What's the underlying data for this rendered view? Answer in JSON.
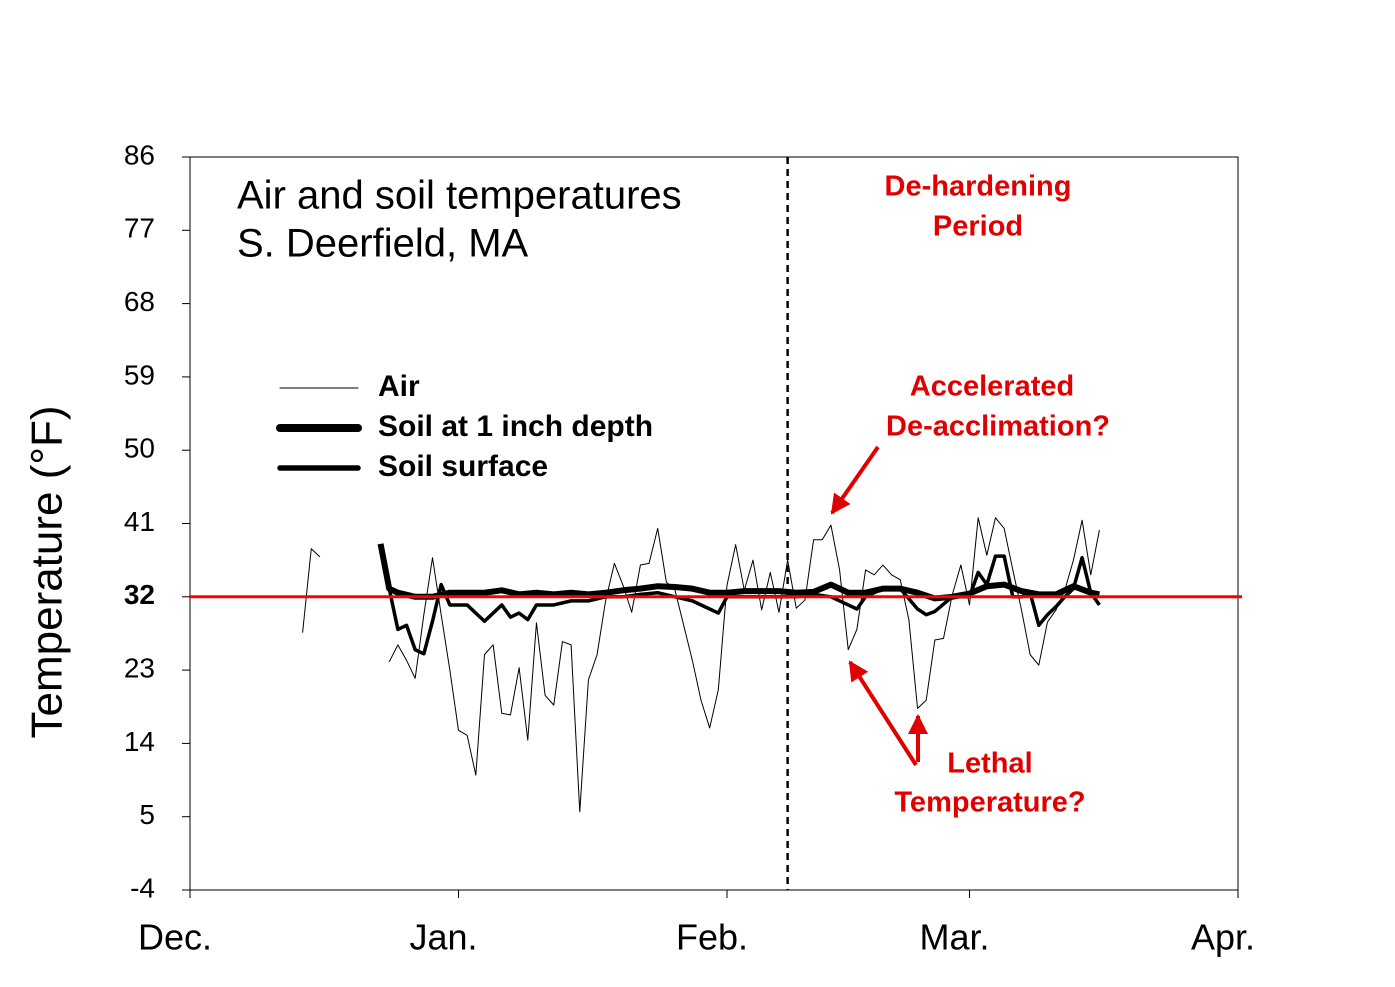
{
  "chart_data": {
    "type": "line",
    "title": [
      "Air and soil temperatures",
      "S. Deerfield, MA"
    ],
    "y_label": "Temperature (°F)",
    "xlim": [
      0,
      121
    ],
    "xticks": [
      {
        "value": 0,
        "label": "Dec."
      },
      {
        "value": 31,
        "label": "Jan."
      },
      {
        "value": 62,
        "label": "Feb."
      },
      {
        "value": 90,
        "label": "Mar."
      },
      {
        "value": 121,
        "label": "Apr."
      }
    ],
    "ylim": [
      -4,
      86
    ],
    "yticks": [
      -4,
      5,
      14,
      23,
      32,
      41,
      50,
      59,
      68,
      77,
      86
    ],
    "threshold": 32,
    "threshold_color": "#ff0000",
    "divider_x": 69,
    "annotations": {
      "period": [
        "De-hardening",
        "Period"
      ],
      "accelerated": [
        "Accelerated",
        "De-acclimation?"
      ],
      "lethal": [
        "Lethal",
        "Temperature?"
      ]
    },
    "series": [
      {
        "name": "Air",
        "color": "#000000",
        "width": 1,
        "x": [
          13,
          14,
          15,
          19,
          23,
          24,
          25,
          26,
          27,
          28,
          29,
          30,
          31,
          32,
          33,
          34,
          35,
          36,
          37,
          38,
          39,
          40,
          41,
          42,
          43,
          44,
          45,
          46,
          47,
          48,
          49,
          50,
          51,
          52,
          53,
          54,
          55,
          56,
          57,
          58,
          59,
          60,
          61,
          62,
          63,
          64,
          65,
          66,
          67,
          68,
          69,
          70,
          71,
          72,
          73,
          74,
          75,
          76,
          77,
          78,
          79,
          80,
          81,
          82,
          83,
          84,
          85,
          86,
          87,
          88,
          89,
          90,
          91,
          92,
          93,
          94,
          95,
          96,
          97,
          98,
          99,
          100,
          101,
          102,
          103,
          104,
          105
        ],
        "values": [
          27.6,
          37.9,
          36.9,
          null,
          24,
          26.1,
          24.2,
          22,
          29.8,
          36.8,
          29.8,
          23,
          15.6,
          15,
          10.1,
          24.9,
          26.1,
          17.7,
          17.5,
          23.3,
          14.4,
          28.8,
          19.9,
          18.7,
          26.5,
          26.1,
          5.6,
          21.8,
          24.9,
          31.6,
          36.1,
          33.4,
          30.1,
          35.9,
          36.1,
          40.4,
          33.8,
          32.8,
          28.5,
          24.2,
          19.3,
          15.9,
          20.6,
          33.4,
          38.4,
          32.8,
          36.5,
          30.4,
          35,
          30.1,
          36.5,
          30.6,
          31.6,
          39,
          39,
          40.8,
          35.3,
          25.5,
          28,
          35.3,
          34.7,
          35.9,
          34.7,
          34.1,
          29.2,
          18.3,
          19.3,
          26.7,
          26.9,
          32.2,
          35.9,
          31,
          41.7,
          37.1,
          41.7,
          40.4,
          35.3,
          30.4,
          24.9,
          23.6,
          28.9,
          30.4,
          32.8,
          36.5,
          41.4,
          34.7,
          40.2
        ]
      },
      {
        "name": "Soil at 1 inch depth",
        "color": "#000000",
        "width": 6,
        "x": [
          22,
          23,
          24,
          26,
          28,
          30,
          32,
          34,
          36,
          38,
          40,
          42,
          44,
          46,
          48,
          50,
          52,
          54,
          56,
          58,
          60,
          62,
          64,
          66,
          68,
          70,
          72,
          74,
          76,
          78,
          80,
          82,
          84,
          86,
          88,
          90,
          92,
          94,
          96,
          98,
          100,
          102,
          104,
          105
        ],
        "values": [
          38.5,
          33,
          32.5,
          32,
          32,
          32.5,
          32.5,
          32.5,
          32.8,
          32.3,
          32.5,
          32.3,
          32.5,
          32.3,
          32.5,
          32.8,
          33,
          33.3,
          33.2,
          33,
          32.5,
          32.5,
          32.7,
          32.7,
          32.7,
          32.5,
          32.6,
          33.5,
          32.5,
          32.5,
          33,
          33,
          32.5,
          31.8,
          32,
          32.4,
          33.3,
          33.5,
          32.7,
          32.3,
          32.3,
          33.3,
          32.5,
          32.3
        ]
      },
      {
        "name": "Soil surface",
        "color": "#000000",
        "width": 3.5,
        "x": [
          22,
          23,
          24,
          25,
          26,
          27,
          28,
          29,
          30,
          32,
          33,
          34,
          36,
          37,
          38,
          39,
          40,
          42,
          44,
          46,
          48,
          50,
          52,
          54,
          56,
          58,
          60,
          61,
          62,
          64,
          66,
          68,
          70,
          72,
          74,
          76,
          77,
          78,
          80,
          82,
          84,
          85,
          86,
          88,
          90,
          91,
          92,
          93,
          94,
          95,
          96,
          97,
          98,
          99,
          100,
          101,
          102,
          103,
          104,
          105
        ],
        "values": [
          38,
          33,
          28,
          28.5,
          25.5,
          25,
          29,
          33.5,
          31,
          31,
          30,
          29,
          31,
          29.5,
          30,
          29.2,
          31,
          31,
          31.5,
          31.5,
          32,
          32,
          32.3,
          32.5,
          32,
          31.5,
          30.5,
          30,
          32,
          32,
          32,
          32,
          32,
          32.3,
          32,
          31,
          30.5,
          32,
          33,
          33,
          30.5,
          29.8,
          30.2,
          32,
          32,
          35,
          33.5,
          37,
          37,
          32,
          32,
          32.5,
          28.5,
          29.8,
          30.8,
          32,
          33,
          36.8,
          32.5,
          31
        ]
      }
    ]
  }
}
